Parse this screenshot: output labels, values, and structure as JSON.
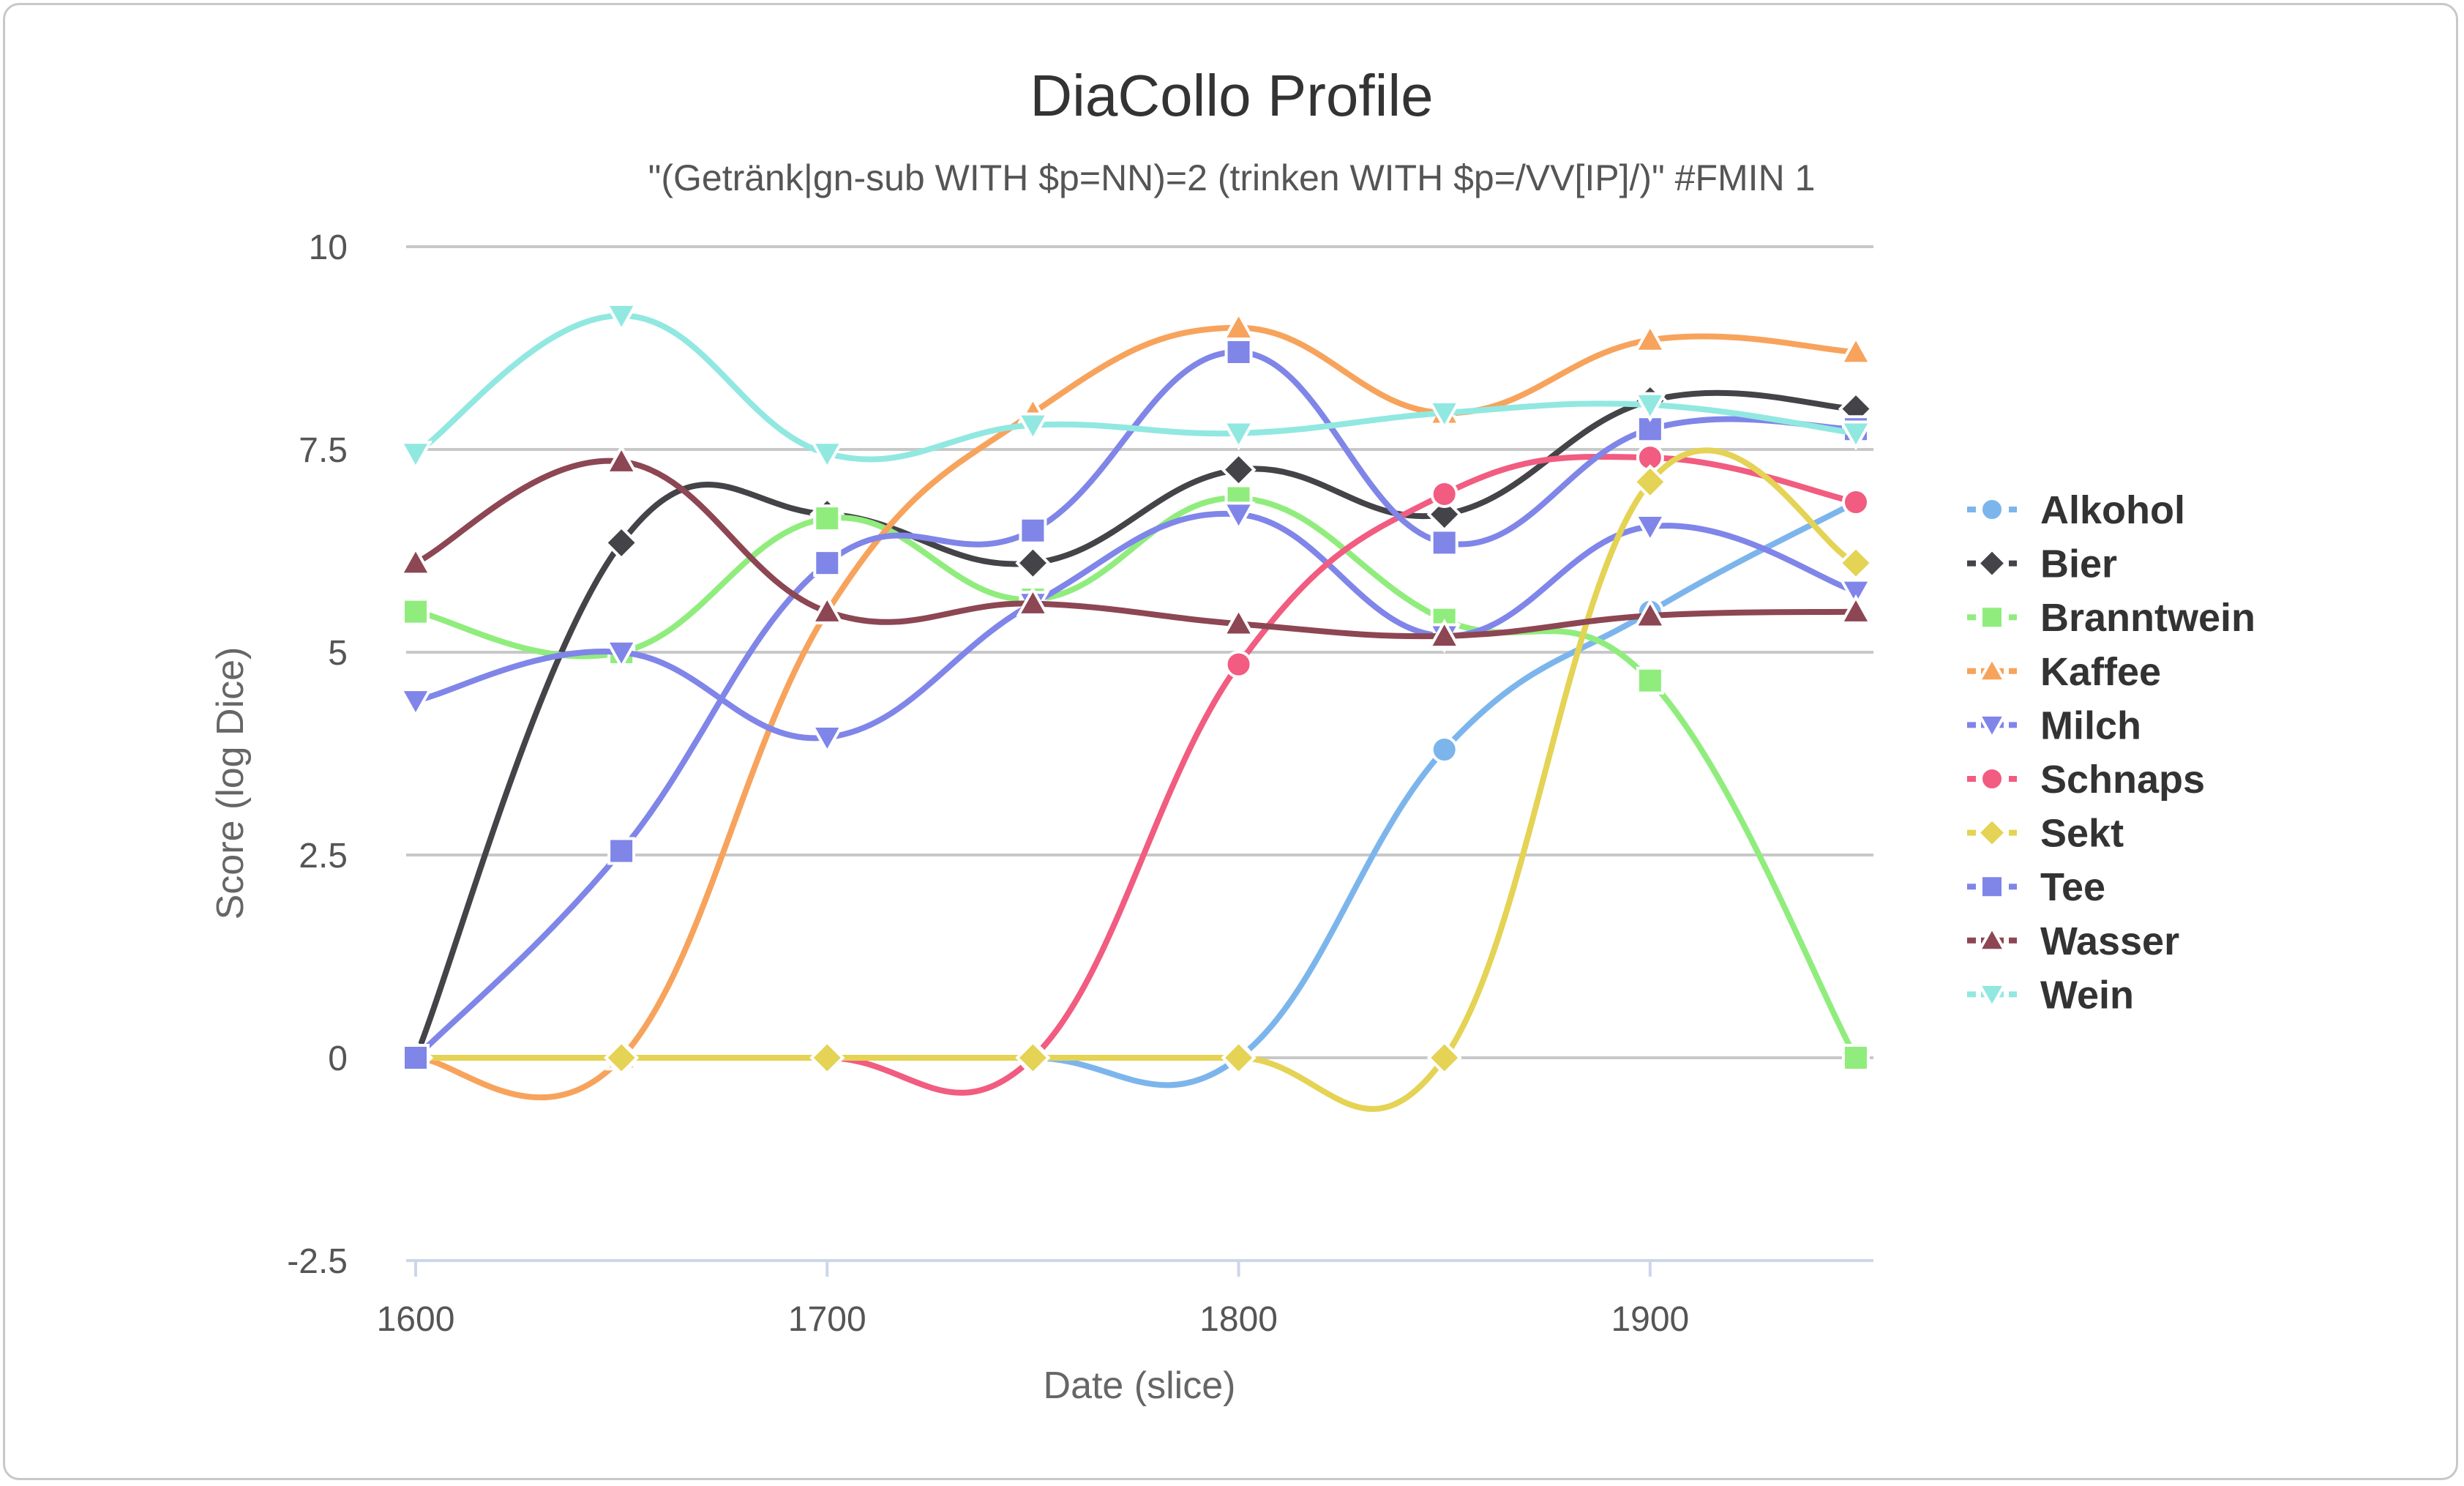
{
  "chart_data": {
    "type": "line",
    "title": "DiaCollo Profile",
    "subtitle": "\"(Getränk|gn-sub WITH $p=NN)=2 (trinken WITH $p=/VV[IP]/)\" #FMIN 1",
    "xlabel": "Date (slice)",
    "ylabel": "Score (log Dice)",
    "x": [
      1600,
      1650,
      1700,
      1750,
      1800,
      1850,
      1900,
      1950
    ],
    "x_ticks": [
      "1600",
      "1700",
      "1800",
      "1900"
    ],
    "x_tick_values": [
      1600,
      1700,
      1800,
      1900
    ],
    "y_ticks": [
      "-2.5",
      "0",
      "2.5",
      "5",
      "7.5",
      "10"
    ],
    "y_tick_values": [
      -2.5,
      0,
      2.5,
      5,
      7.5,
      10
    ],
    "xlim": [
      1600,
      1950
    ],
    "ylim": [
      -2.5,
      10
    ],
    "grid": "horizontal",
    "smooth": true,
    "legend_position": "right",
    "series": [
      {
        "name": "Alkohol",
        "color": "#7cb5ec",
        "marker": "circle",
        "values": [
          0,
          0,
          0,
          0,
          0,
          3.8,
          5.5,
          6.85
        ]
      },
      {
        "name": "Bier",
        "color": "#434348",
        "marker": "diamond",
        "values": [
          0,
          6.35,
          6.7,
          6.1,
          7.25,
          6.7,
          8.1,
          8.0
        ]
      },
      {
        "name": "Branntwein",
        "color": "#90ed7d",
        "marker": "square",
        "values": [
          5.5,
          5.0,
          6.65,
          5.65,
          6.9,
          5.4,
          4.65,
          0
        ]
      },
      {
        "name": "Kaffee",
        "color": "#f7a35c",
        "marker": "triangle",
        "values": [
          0,
          0,
          5.5,
          7.95,
          9.0,
          7.95,
          8.85,
          8.7
        ]
      },
      {
        "name": "Milch",
        "color": "#8085e9",
        "marker": "triangle-down",
        "values": [
          4.4,
          5.0,
          3.95,
          5.6,
          6.7,
          5.2,
          6.55,
          5.75
        ]
      },
      {
        "name": "Schnaps",
        "color": "#f15c80",
        "marker": "circle",
        "values": [
          0,
          0,
          0,
          0,
          4.85,
          6.95,
          7.4,
          6.85
        ]
      },
      {
        "name": "Sekt",
        "color": "#e4d354",
        "marker": "diamond",
        "values": [
          0,
          0,
          0,
          0,
          0,
          0,
          7.1,
          6.1
        ]
      },
      {
        "name": "Tee",
        "color": "#8085e8",
        "marker": "square",
        "values": [
          0,
          2.55,
          6.1,
          6.5,
          8.7,
          6.35,
          7.75,
          7.75
        ]
      },
      {
        "name": "Wasser",
        "color": "#8d4653",
        "marker": "triangle",
        "values": [
          6.1,
          7.35,
          5.5,
          5.6,
          5.35,
          5.2,
          5.45,
          5.5
        ]
      },
      {
        "name": "Wein",
        "color": "#91e8e1",
        "marker": "triangle-down",
        "values": [
          7.45,
          9.15,
          7.45,
          7.8,
          7.7,
          7.95,
          8.05,
          7.7
        ]
      }
    ]
  }
}
